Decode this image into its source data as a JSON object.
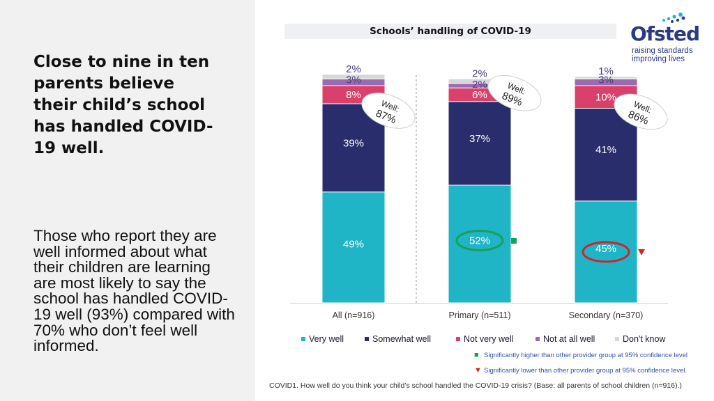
{
  "slide": {
    "headline": "Close to nine in ten parents believe their child’s school has handled COVID-19 well.",
    "body": "Those who report they are well informed about what their children are learning are most likely to say the school has handled COVID-19 well (93%) compared with 70% who don’t feel well informed."
  },
  "logo": {
    "name": "Ofsted",
    "tagline_1": "raising standards",
    "tagline_2": "improving lives"
  },
  "colors": {
    "very_well": "#1fb4c6",
    "somewhat_well": "#2a2d6b",
    "not_very_well": "#d9406a",
    "not_at_all_well": "#9b6bb2",
    "dont_know": "#d7d7d9",
    "higher": "#16a05a",
    "lower": "#d2232a"
  },
  "chart_data": {
    "type": "bar",
    "stacked": true,
    "title": "Schools’ handling of COVID-19",
    "categories": [
      "All (n=916)",
      "Primary (n=511)",
      "Secondary (n=370)"
    ],
    "series": [
      {
        "name": "Very well",
        "values": [
          49,
          52,
          45
        ],
        "labels": [
          "49%",
          "52%",
          "45%"
        ]
      },
      {
        "name": "Somewhat well",
        "values": [
          39,
          37,
          41
        ],
        "labels": [
          "39%",
          "37%",
          "41%"
        ]
      },
      {
        "name": "Not very well",
        "values": [
          8,
          6,
          10
        ],
        "labels": [
          "8%",
          "6%",
          "10%"
        ]
      },
      {
        "name": "Not at all well",
        "values": [
          3,
          2,
          3
        ],
        "labels": [
          "3%",
          "2%",
          "3%"
        ]
      },
      {
        "name": "Don't know",
        "values": [
          2,
          2,
          1
        ],
        "labels": [
          "2%",
          "2%",
          "1%"
        ]
      }
    ],
    "well_prefix": "Well:",
    "well_totals": [
      "87%",
      "89%",
      "86%"
    ],
    "significance": [
      "",
      "higher",
      "lower"
    ],
    "ylim": [
      0,
      100
    ],
    "legend_position": "bottom"
  },
  "significance_key": {
    "higher_symbol": "■",
    "higher_text": "Significantly higher than other provider group at 95% confidence level",
    "lower_symbol": "▼",
    "lower_text": "Significantly lower than other provider group at 95% confidence level."
  },
  "footnote": "COVID1. How well do you think your child’s school handled the COVID-19 crisis? (Base: all parents of school children (n=916).)"
}
